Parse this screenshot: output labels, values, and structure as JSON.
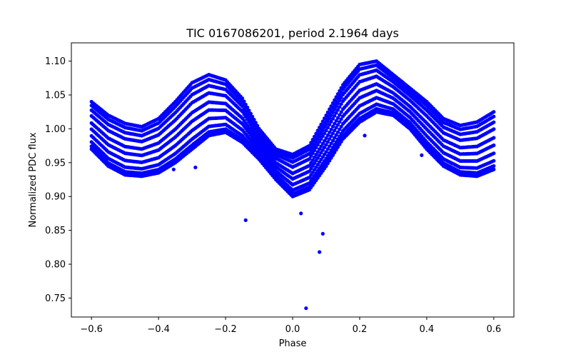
{
  "chart_data": {
    "type": "scatter",
    "title": "TIC 0167086201, period 2.1964 days",
    "xlabel": "Phase",
    "ylabel": "Normalized PDC flux",
    "xlim": [
      -0.66,
      0.66
    ],
    "ylim": [
      0.722,
      1.127
    ],
    "xticks": [
      -0.6,
      -0.4,
      -0.2,
      0.0,
      0.2,
      0.4,
      0.6
    ],
    "xtick_labels": [
      "−0.6",
      "−0.4",
      "−0.2",
      "0.0",
      "0.2",
      "0.4",
      "0.6"
    ],
    "yticks": [
      0.75,
      0.8,
      0.85,
      0.9,
      0.95,
      1.0,
      1.05,
      1.1
    ],
    "ytick_labels": [
      "0.75",
      "0.80",
      "0.85",
      "0.90",
      "0.95",
      "1.00",
      "1.05",
      "1.10"
    ],
    "marker_color": "#0000ff",
    "grid": false,
    "band": {
      "x": [
        -0.6,
        -0.55,
        -0.5,
        -0.45,
        -0.4,
        -0.35,
        -0.3,
        -0.25,
        -0.2,
        -0.15,
        -0.1,
        -0.05,
        0.0,
        0.05,
        0.1,
        0.15,
        0.2,
        0.25,
        0.3,
        0.35,
        0.4,
        0.45,
        0.5,
        0.55,
        0.6
      ],
      "upper": [
        1.04,
        1.02,
        1.008,
        1.003,
        1.015,
        1.04,
        1.068,
        1.08,
        1.072,
        1.045,
        1.0,
        0.97,
        0.962,
        0.975,
        1.02,
        1.065,
        1.095,
        1.1,
        1.08,
        1.06,
        1.04,
        1.015,
        1.005,
        1.01,
        1.025
      ],
      "lower": [
        0.97,
        0.945,
        0.932,
        0.93,
        0.935,
        0.95,
        0.97,
        0.99,
        0.995,
        0.98,
        0.955,
        0.925,
        0.9,
        0.91,
        0.945,
        0.985,
        1.01,
        1.025,
        1.02,
        1.0,
        0.97,
        0.945,
        0.932,
        0.93,
        0.94
      ]
    },
    "tracks": [
      0.0,
      0.06,
      0.15,
      0.28,
      0.42,
      0.55,
      0.7,
      0.82,
      0.92,
      1.0
    ],
    "x_step": 0.005,
    "outliers": [
      {
        "x": 0.04,
        "y": 0.735
      },
      {
        "x": -0.14,
        "y": 0.865
      },
      {
        "x": 0.025,
        "y": 0.875
      },
      {
        "x": 0.09,
        "y": 0.845
      },
      {
        "x": 0.08,
        "y": 0.818
      },
      {
        "x": -0.29,
        "y": 0.943
      },
      {
        "x": -0.355,
        "y": 0.94
      },
      {
        "x": 0.215,
        "y": 0.99
      },
      {
        "x": 0.385,
        "y": 0.961
      }
    ]
  }
}
